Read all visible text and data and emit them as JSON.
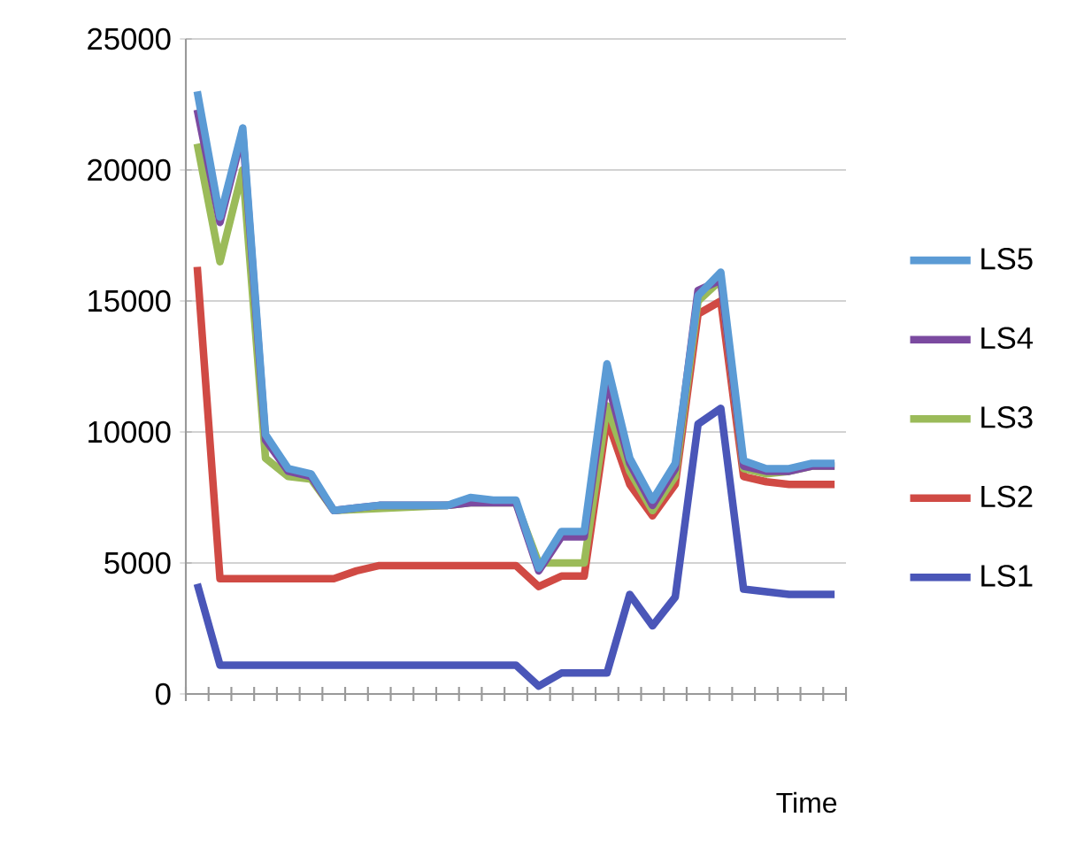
{
  "chart_data": {
    "type": "line",
    "xlabel": "Time",
    "categories": [
      null,
      null,
      null,
      null,
      null,
      null,
      null,
      null,
      null,
      null,
      null,
      null,
      null,
      null,
      null,
      null,
      null,
      null,
      null,
      null,
      null,
      null,
      null,
      null,
      null,
      null,
      null,
      null,
      null
    ],
    "ylim": [
      0,
      25000
    ],
    "yticks": [
      0,
      5000,
      10000,
      15000,
      20000,
      25000
    ],
    "grid": "y",
    "legend": "right",
    "marker": "none",
    "line_style": "solid",
    "series": [
      {
        "name": "LS5",
        "color": "#5b9bd5",
        "values": [
          23000,
          18200,
          21600,
          9900,
          8600,
          8400,
          7000,
          7100,
          7200,
          7200,
          7200,
          7200,
          7500,
          7400,
          7400,
          4800,
          6200,
          6200,
          12600,
          9000,
          7400,
          8800,
          15200,
          16100,
          8900,
          8600,
          8600,
          8800,
          8800
        ]
      },
      {
        "name": "LS4",
        "color": "#7b4aa0",
        "values": [
          22300,
          18000,
          21400,
          9700,
          8500,
          8300,
          7000,
          7100,
          7200,
          7200,
          7200,
          7200,
          7300,
          7300,
          7300,
          4700,
          6000,
          6000,
          12000,
          8800,
          7200,
          8600,
          15400,
          15800,
          8700,
          8500,
          8500,
          8700,
          8700
        ]
      },
      {
        "name": "LS3",
        "color": "#9bbb59",
        "values": [
          21000,
          16500,
          20000,
          9000,
          8300,
          8200,
          7000,
          null,
          null,
          null,
          null,
          7200,
          7300,
          null,
          7300,
          5000,
          5000,
          5000,
          11000,
          8500,
          7000,
          8300,
          15000,
          15800,
          8600,
          8400,
          8500,
          8700,
          8700
        ]
      },
      {
        "name": "LS2",
        "color": "#d04a44",
        "values": [
          16300,
          4400,
          4400,
          4400,
          4400,
          4400,
          4400,
          4700,
          4900,
          4900,
          4900,
          4900,
          4900,
          4900,
          4900,
          4100,
          4500,
          4500,
          10500,
          8000,
          6800,
          8000,
          14500,
          15000,
          8300,
          8100,
          8000,
          8000,
          8000
        ]
      },
      {
        "name": "LS1",
        "color": "#4a56b8",
        "values": [
          4200,
          1100,
          1100,
          1100,
          1100,
          1100,
          1100,
          1100,
          1100,
          1100,
          1100,
          1100,
          1100,
          1100,
          1100,
          300,
          800,
          800,
          800,
          3800,
          2600,
          3700,
          10300,
          10900,
          4000,
          3900,
          3800,
          3800,
          3800
        ]
      }
    ]
  }
}
